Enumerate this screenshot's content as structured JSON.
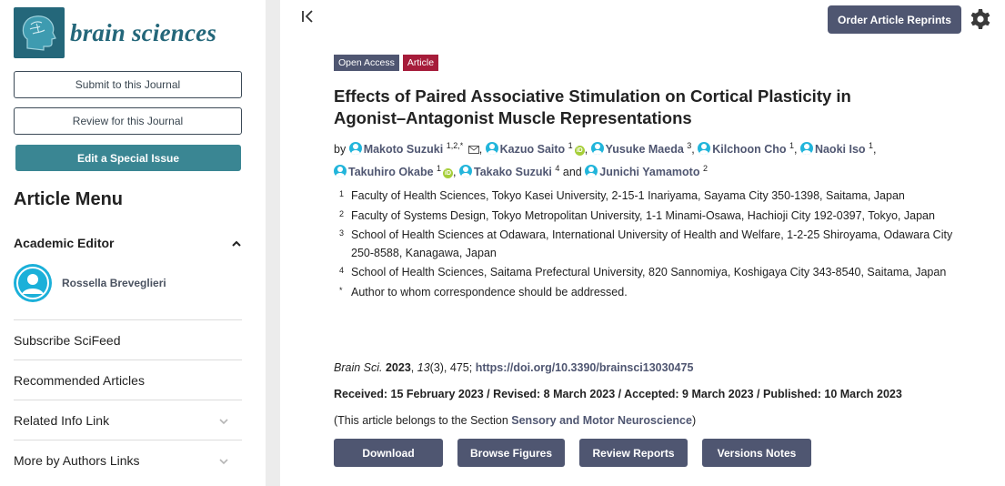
{
  "journal": {
    "name": "brain sciences"
  },
  "sidebar": {
    "submit_label": "Submit to this Journal",
    "review_label": "Review for this Journal",
    "special_issue_label": "Edit a Special Issue",
    "menu_title": "Article Menu",
    "academic_editor": {
      "heading": "Academic Editor",
      "name": "Rossella Breveglieri"
    },
    "links": [
      {
        "label": "Subscribe SciFeed",
        "expandable": false
      },
      {
        "label": "Recommended Articles",
        "expandable": false
      },
      {
        "label": "Related Info Link",
        "expandable": true
      },
      {
        "label": "More by Authors Links",
        "expandable": true
      }
    ]
  },
  "header": {
    "collapse_glyph": "|<",
    "reprint_label": "Order Article Reprints"
  },
  "article": {
    "badges": {
      "open_access": "Open Access",
      "type": "Article"
    },
    "title": "Effects of Paired Associative Stimulation on Cortical Plasticity in Agonist–Antagonist Muscle Representations",
    "by": "by",
    "and": "and",
    "authors": [
      {
        "name": "Makoto Suzuki",
        "sup": "1,2,*",
        "orcid": false,
        "email": true
      },
      {
        "name": "Kazuo Saito",
        "sup": "1",
        "orcid": true,
        "email": false
      },
      {
        "name": "Yusuke Maeda",
        "sup": "3",
        "orcid": false,
        "email": false
      },
      {
        "name": "Kilchoon Cho",
        "sup": "1",
        "orcid": false,
        "email": false
      },
      {
        "name": "Naoki Iso",
        "sup": "1",
        "orcid": false,
        "email": false
      },
      {
        "name": "Takuhiro Okabe",
        "sup": "1",
        "orcid": true,
        "email": false
      },
      {
        "name": "Takako Suzuki",
        "sup": "4",
        "orcid": false,
        "email": false
      },
      {
        "name": "Junichi Yamamoto",
        "sup": "2",
        "orcid": false,
        "email": false
      }
    ],
    "affiliations": [
      {
        "num": "1",
        "text": "Faculty of Health Sciences, Tokyo Kasei University, 2-15-1 Inariyama, Sayama City 350-1398, Saitama, Japan"
      },
      {
        "num": "2",
        "text": "Faculty of Systems Design, Tokyo Metropolitan University, 1-1 Minami-Osawa, Hachioji City 192-0397, Tokyo, Japan"
      },
      {
        "num": "3",
        "text": "School of Health Sciences at Odawara, International University of Health and Welfare, 1-2-25 Shiroyama, Odawara City 250-8588, Kanagawa, Japan"
      },
      {
        "num": "4",
        "text": "School of Health Sciences, Saitama Prefectural University, 820 Sannomiya, Koshigaya City 343-8540, Saitama, Japan"
      },
      {
        "num": "*",
        "text": "Author to whom correspondence should be addressed."
      }
    ],
    "citation": {
      "journal": "Brain Sci.",
      "year": "2023",
      "volume": "13",
      "issue_pages": "(3), 475;",
      "doi": "https://doi.org/10.3390/brainsci13030475"
    },
    "dates": "Received: 15 February 2023 / Revised: 8 March 2023 / Accepted: 9 March 2023 / Published: 10 March 2023",
    "section": {
      "prefix": "(This article belongs to the Section",
      "name": "Sensory and Motor Neuroscience",
      "suffix": ")"
    },
    "actions": [
      "Download",
      "Browse Figures",
      "Review Reports",
      "Versions Notes"
    ]
  },
  "colors": {
    "brand": "#24677a",
    "accent": "#4f5671",
    "teal_button": "#3a8693",
    "article_badge": "#a61c3a",
    "author_icon": "#22b5db"
  }
}
